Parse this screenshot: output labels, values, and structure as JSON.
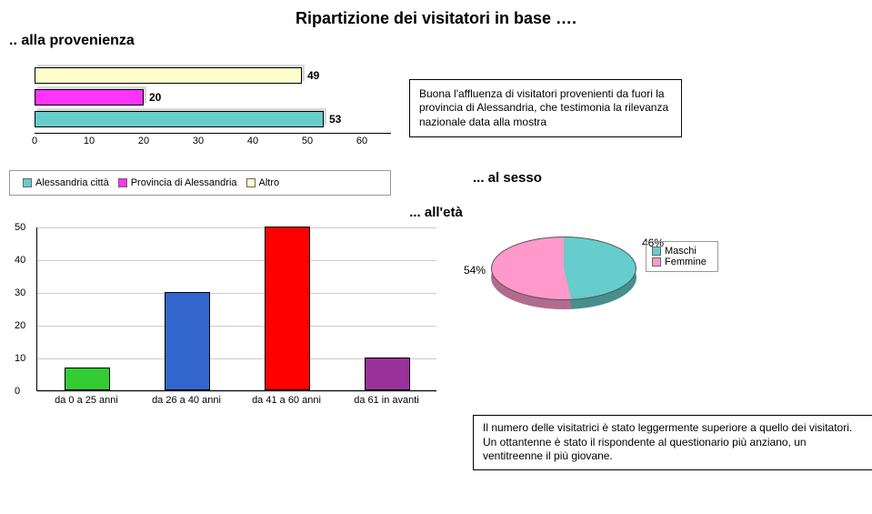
{
  "title": "Ripartizione dei visitatori in base ….",
  "provenance": {
    "subtitle": ".. alla provenienza",
    "bars": [
      {
        "label": "Altro",
        "value": 49,
        "color": "#ffffcc"
      },
      {
        "label": "Provincia di Alessandria",
        "value": 20,
        "color": "#ff33ff"
      },
      {
        "label": "Alessandria città",
        "value": 53,
        "color": "#66cccc"
      }
    ],
    "xmax": 60,
    "xtick": 10,
    "ticks": [
      0,
      10,
      20,
      30,
      40,
      50,
      60
    ],
    "legend": [
      "Alessandria città",
      "Provincia di Alessandria",
      "Altro"
    ],
    "legend_colors": [
      "#66cccc",
      "#ff33ff",
      "#ffffcc"
    ],
    "info": "Buona l'affluenza di visitatori provenienti da fuori la provincia di Alessandria, che testimonia la rilevanza nazionale data alla mostra"
  },
  "sesso": {
    "title": "... al sesso",
    "slices": [
      {
        "label": "Maschi",
        "pct": "46%",
        "color": "#66cccc"
      },
      {
        "label": "Femmine",
        "pct": "54%",
        "color": "#ff99cc"
      }
    ],
    "maschi_deg": 166
  },
  "age": {
    "title": "... all'età",
    "ymax": 50,
    "ytick": 10,
    "yticks": [
      0,
      10,
      20,
      30,
      40,
      50
    ],
    "bars": [
      {
        "label": "da 0 a 25 anni",
        "value": 7,
        "color": "#33cc33"
      },
      {
        "label": "da 26 a 40 anni",
        "value": 30,
        "color": "#3366cc"
      },
      {
        "label": "da 41 a 60 anni",
        "value": 50,
        "color": "#ff0000"
      },
      {
        "label": "da 61 in avanti",
        "value": 10,
        "color": "#993399"
      }
    ],
    "caption": "Il numero delle visitatrici è stato leggermente superiore a quello dei visitatori. Un ottantenne è stato il rispondente al questionario più anziano, un ventitreenne il più giovane."
  }
}
